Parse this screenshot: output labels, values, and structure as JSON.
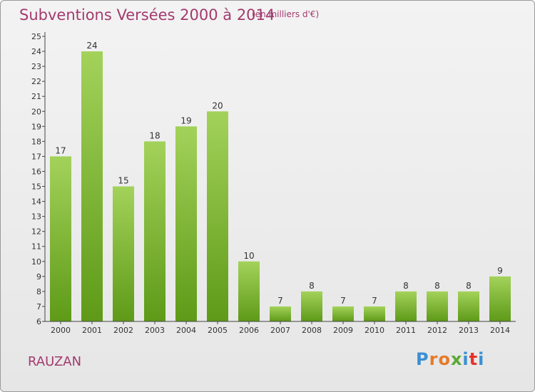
{
  "title": "Subventions Versées 2000 à 2014",
  "subtitle": "(en milliers d'€)",
  "commune": "RAUZAN",
  "logo": {
    "letters": [
      "P",
      "r",
      "o",
      "x",
      "i",
      "t",
      "i"
    ],
    "colors": [
      "#3a8fd4",
      "#e57b2a",
      "#e57b2a",
      "#5aa832",
      "#3a8fd4",
      "#e5322a",
      "#3a8fd4"
    ]
  },
  "colors": {
    "bar_top": "#a3d25a",
    "bar_bottom": "#5e9a18",
    "title": "#a33a6e"
  },
  "chart_data": {
    "type": "bar",
    "categories": [
      "2000",
      "2001",
      "2002",
      "2003",
      "2004",
      "2005",
      "2006",
      "2007",
      "2008",
      "2009",
      "2010",
      "2011",
      "2012",
      "2013",
      "2014"
    ],
    "values": [
      17,
      24,
      15,
      18,
      19,
      20,
      10,
      7,
      8,
      7,
      7,
      8,
      8,
      8,
      9
    ],
    "ylim": [
      6,
      25
    ],
    "yticks": [
      6,
      7,
      8,
      9,
      10,
      11,
      12,
      13,
      14,
      15,
      16,
      17,
      18,
      19,
      20,
      21,
      22,
      23,
      24,
      25
    ],
    "data_labels": true,
    "grid": false,
    "xlabel": "",
    "ylabel": ""
  }
}
